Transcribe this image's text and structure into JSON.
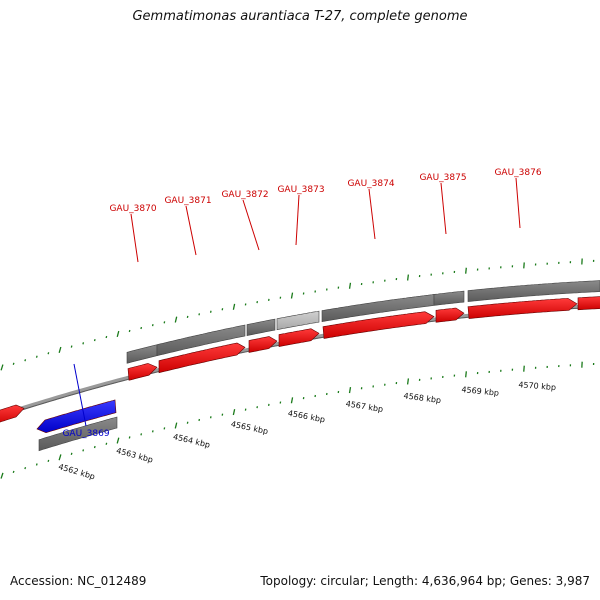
{
  "title": "Gemmatimonas aurantiaca T-27, complete genome",
  "footer": {
    "accession": "Accession: NC_012489",
    "summary": "Topology: circular; Length: 4,636,964 bp; Genes: 3,987"
  },
  "scale_labels": [
    "4562 kbp",
    "4563 kbp",
    "4564 kbp",
    "4565 kbp",
    "4566 kbp",
    "4567 kbp",
    "4568 kbp",
    "4569 kbp",
    "4570 kbp"
  ],
  "genes": [
    {
      "label": "GAU_3869",
      "strand": "reverse"
    },
    {
      "label": "GAU_3870",
      "strand": "forward"
    },
    {
      "label": "GAU_3871",
      "strand": "forward"
    },
    {
      "label": "GAU_3872",
      "strand": "forward"
    },
    {
      "label": "GAU_3873",
      "strand": "forward"
    },
    {
      "label": "GAU_3874",
      "strand": "forward"
    },
    {
      "label": "GAU_3875",
      "strand": "forward"
    },
    {
      "label": "GAU_3876",
      "strand": "forward"
    }
  ],
  "colors": {
    "forward_gene": "#ee0000",
    "reverse_gene": "#0000ee",
    "forward_label": "#cc0000",
    "reverse_label": "#0000cc",
    "backbone": "#888888",
    "tick": "#1a7a1a",
    "feature_dark": "#666666",
    "feature_light": "#bbbbbb"
  }
}
